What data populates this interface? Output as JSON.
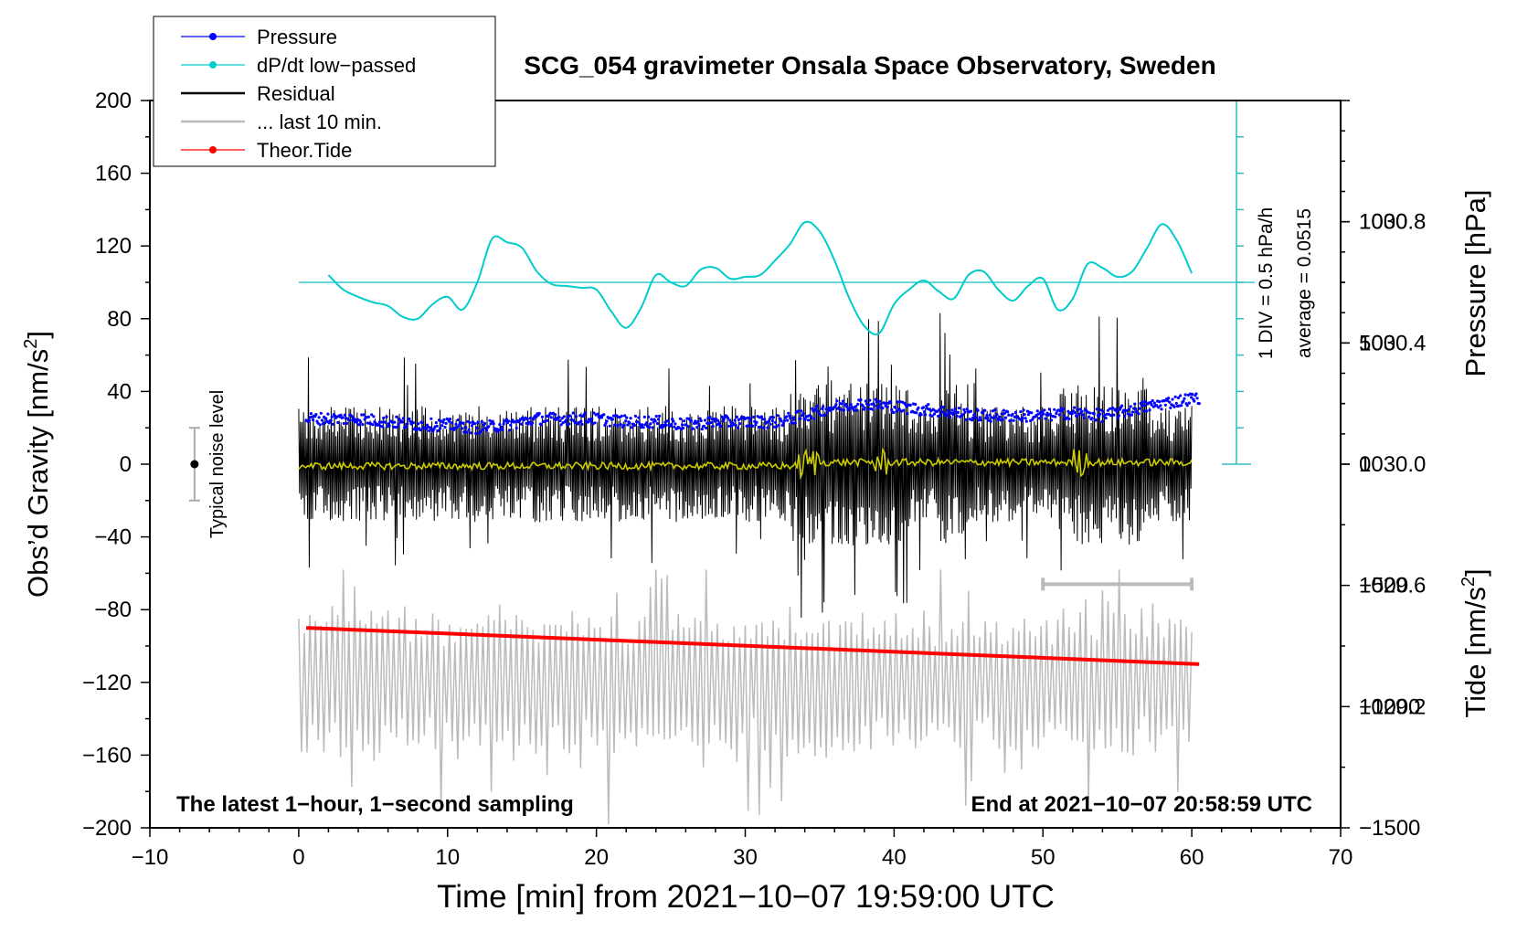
{
  "chart_data": {
    "type": "line",
    "title": "SCG_054 gravimeter Onsala Space Observatory, Sweden",
    "xlabel": "Time [min] from 2021−10−07 19:59:00 UTC",
    "ylabel_main": "Obs’d Gravity [nm/s",
    "ylabel_main_sup": "2",
    "ylabel_main_end": "]",
    "ylabel_pressure": "Pressure [hPa]",
    "ylabel_tide": "Tide [nm/s",
    "ylabel_tide_sup": "2",
    "ylabel_tide_end": "]",
    "xlim": [
      -10,
      70
    ],
    "ylim": [
      -200,
      200
    ],
    "x_ticks": [
      {
        "v": -10,
        "label": "−10"
      },
      {
        "v": 0,
        "label": "0"
      },
      {
        "v": 10,
        "label": "10"
      },
      {
        "v": 20,
        "label": "20"
      },
      {
        "v": 30,
        "label": "30"
      },
      {
        "v": 40,
        "label": "40"
      },
      {
        "v": 50,
        "label": "50"
      },
      {
        "v": 60,
        "label": "60"
      },
      {
        "v": 70,
        "label": "70"
      }
    ],
    "y_ticks": [
      {
        "v": 200,
        "label": "200"
      },
      {
        "v": 160,
        "label": "160"
      },
      {
        "v": 120,
        "label": "120"
      },
      {
        "v": 80,
        "label": "80"
      },
      {
        "v": 40,
        "label": "40"
      },
      {
        "v": 0,
        "label": "0"
      },
      {
        "v": -40,
        "label": "−40"
      },
      {
        "v": -80,
        "label": "−80"
      },
      {
        "v": -120,
        "label": "−120"
      },
      {
        "v": -160,
        "label": "−160"
      },
      {
        "v": -200,
        "label": "−200"
      }
    ],
    "pressure_axis": {
      "ylim": [
        1028.8,
        1031.2
      ],
      "ticks": [
        {
          "v": 1030.8,
          "label": "1030.8"
        },
        {
          "v": 1030.4,
          "label": "1030.4"
        },
        {
          "v": 1030.0,
          "label": "1030.0"
        },
        {
          "v": 1029.6,
          "label": "1029.6"
        },
        {
          "v": 1029.2,
          "label": "1029.2"
        }
      ]
    },
    "tide_axis": {
      "ylim": [
        -1500,
        1500
      ],
      "ticks": [
        {
          "v": 1000,
          "label": "1000"
        },
        {
          "v": 500,
          "label": "500"
        },
        {
          "v": 0,
          "label": "0"
        },
        {
          "v": -500,
          "label": "−500"
        },
        {
          "v": -1000,
          "label": "−1000"
        },
        {
          "v": -1500,
          "label": "−1500"
        }
      ]
    },
    "legend": {
      "position": "top-left",
      "entries": [
        {
          "name": "Pressure",
          "color": "#0000ff",
          "style": "dot-line"
        },
        {
          "name": "dP/dt low−passed",
          "color": "#00cccc",
          "style": "dot-line"
        },
        {
          "name": "Residual",
          "color": "#000000",
          "style": "line"
        },
        {
          "name": "... last 10 min.",
          "color": "#bbbbbb",
          "style": "line"
        },
        {
          "name": "Theor.Tide",
          "color": "#ff0000",
          "style": "dot-line"
        }
      ]
    },
    "series": [
      {
        "name": "Pressure",
        "axis": "pressure",
        "color": "#0000ff",
        "x": [
          0,
          2,
          4,
          6,
          8,
          10,
          12,
          14,
          16,
          18,
          20,
          22,
          24,
          26,
          28,
          30,
          32,
          34,
          36,
          38,
          40,
          42,
          44,
          46,
          48,
          50,
          52,
          54,
          56,
          58,
          60.5
        ],
        "values": [
          1030.15,
          1030.15,
          1030.15,
          1030.14,
          1030.13,
          1030.13,
          1030.12,
          1030.13,
          1030.15,
          1030.15,
          1030.15,
          1030.14,
          1030.14,
          1030.13,
          1030.14,
          1030.14,
          1030.14,
          1030.16,
          1030.19,
          1030.2,
          1030.19,
          1030.18,
          1030.17,
          1030.16,
          1030.16,
          1030.16,
          1030.17,
          1030.16,
          1030.18,
          1030.2,
          1030.22
        ]
      },
      {
        "name": "dP/dt low−passed",
        "axis": "main",
        "color": "#00cccc",
        "x": [
          2,
          3,
          4,
          5,
          6,
          7,
          8,
          9,
          10,
          11,
          12,
          13,
          14,
          15,
          16,
          17,
          18,
          19,
          20,
          21,
          22,
          23,
          24,
          25,
          26,
          27,
          28,
          29,
          30,
          31,
          32,
          33,
          34,
          35,
          36,
          37,
          38,
          39,
          40,
          41,
          42,
          43,
          44,
          45,
          46,
          47,
          48,
          49,
          50,
          51,
          52,
          53,
          54,
          55,
          56,
          57,
          58,
          59,
          60
        ],
        "values": [
          104,
          96,
          92,
          89,
          87,
          81,
          80,
          88,
          92,
          85,
          100,
          124,
          122,
          119,
          106,
          99,
          98,
          97,
          96,
          84,
          75,
          86,
          104,
          100,
          98,
          107,
          108,
          102,
          103,
          104,
          112,
          121,
          133,
          128,
          112,
          91,
          76,
          72,
          88,
          96,
          101,
          95,
          91,
          104,
          106,
          96,
          90,
          98,
          102,
          85,
          91,
          110,
          108,
          103,
          106,
          119,
          132,
          123,
          105
        ]
      },
      {
        "name": "Residual",
        "axis": "main",
        "color": "#000000",
        "x_range": [
          0,
          60
        ],
        "amplitude": "~±40 nm/s², bursts to ±90"
      },
      {
        "name": "... last 10 min.",
        "axis": "main",
        "color": "#bbbbbb",
        "x_range": [
          0,
          60
        ],
        "amplitude": "oscillating about −120, −205 to −65"
      },
      {
        "name": "Theor.Tide",
        "axis": "main",
        "color": "#ff0000",
        "x": [
          0.5,
          60.5
        ],
        "values": [
          -90,
          -110
        ]
      }
    ],
    "zero_reference": {
      "value": 100,
      "color": "#33cccc",
      "x_range": [
        0,
        63
      ]
    },
    "scale_bar": {
      "label": "1 DIV = 0.5 hPa/h",
      "x": 63,
      "y_range": [
        0,
        200
      ],
      "color": "#33bbbb"
    },
    "average_label": "average = 0.0515",
    "noise_level": {
      "label": "Typical noise level",
      "x": -7,
      "y": 0,
      "range": [
        -20,
        20
      ]
    },
    "last10_bar": {
      "x_range": [
        50,
        60
      ],
      "y": -66,
      "color": "#bbbbbb"
    },
    "annotations": {
      "bottom_left": "The latest 1−hour, 1−second sampling",
      "bottom_right": "End at 2021−10−07 20:58:59 UTC"
    },
    "grid": false
  }
}
